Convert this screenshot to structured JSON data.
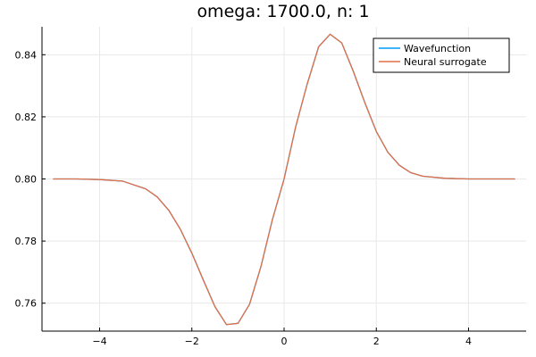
{
  "chart_data": {
    "type": "line",
    "title": "omega: 1700.0, n: 1",
    "xlabel": "",
    "ylabel": "",
    "xlim": [
      -5.25,
      5.25
    ],
    "ylim": [
      0.751,
      0.849
    ],
    "x_ticks": [
      -4,
      -2,
      0,
      2,
      4
    ],
    "x_tick_labels": [
      "−4",
      "−2",
      "0",
      "2",
      "4"
    ],
    "y_ticks": [
      0.76,
      0.78,
      0.8,
      0.82,
      0.84
    ],
    "y_tick_labels": [
      "0.76",
      "0.78",
      "0.80",
      "0.82",
      "0.84"
    ],
    "grid": true,
    "legend_position": "top-right",
    "series": [
      {
        "name": "Wavefunction",
        "color": "#009AFA",
        "x": [
          -5,
          -4.5,
          -4,
          -3.5,
          -3,
          -2.75,
          -2.5,
          -2.25,
          -2,
          -1.75,
          -1.5,
          -1.25,
          -1,
          -0.75,
          -0.5,
          -0.25,
          0,
          0.25,
          0.5,
          0.75,
          1,
          1.25,
          1.5,
          1.75,
          2,
          2.25,
          2.5,
          2.75,
          3,
          3.5,
          4,
          4.5,
          5
        ],
        "y": [
          0.8,
          0.8,
          0.7998,
          0.7993,
          0.7968,
          0.7942,
          0.7899,
          0.7838,
          0.7761,
          0.7674,
          0.7589,
          0.7531,
          0.7535,
          0.7596,
          0.7719,
          0.7871,
          0.8,
          0.8167,
          0.8305,
          0.8426,
          0.8466,
          0.8438,
          0.8347,
          0.8246,
          0.8153,
          0.8086,
          0.8044,
          0.802,
          0.8009,
          0.8002,
          0.8,
          0.8,
          0.8
        ]
      },
      {
        "name": "Neural surrogate",
        "color": "#E26F46",
        "x": [
          -5,
          -4.5,
          -4,
          -3.5,
          -3,
          -2.75,
          -2.5,
          -2.25,
          -2,
          -1.75,
          -1.5,
          -1.25,
          -1,
          -0.75,
          -0.5,
          -0.25,
          0,
          0.25,
          0.5,
          0.75,
          1,
          1.25,
          1.5,
          1.75,
          2,
          2.25,
          2.5,
          2.75,
          3,
          3.5,
          4,
          4.5,
          5
        ],
        "y": [
          0.8,
          0.8,
          0.7998,
          0.7993,
          0.7968,
          0.7942,
          0.7899,
          0.7838,
          0.7761,
          0.7674,
          0.7589,
          0.7531,
          0.7535,
          0.7596,
          0.7719,
          0.7871,
          0.8,
          0.8167,
          0.8305,
          0.8426,
          0.8466,
          0.8438,
          0.8347,
          0.8246,
          0.8153,
          0.8086,
          0.8044,
          0.802,
          0.8009,
          0.8002,
          0.8,
          0.8,
          0.8
        ]
      }
    ]
  }
}
